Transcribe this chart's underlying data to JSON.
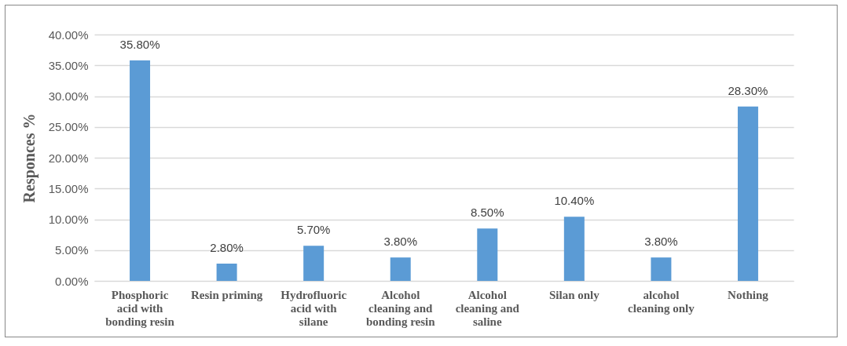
{
  "chart_data": {
    "type": "bar",
    "ylabel": "Responces %",
    "categories": [
      "Phosphoric acid with bonding resin",
      "Resin priming",
      "Hydrofluoric acid with silane",
      "Alcohol cleaning and bonding resin",
      "Alcohol cleaning and saline",
      "Silan only",
      "alcohol cleaning only",
      "Nothing"
    ],
    "values": [
      35.8,
      2.8,
      5.7,
      3.8,
      8.5,
      10.4,
      3.8,
      28.3
    ],
    "value_labels": [
      "35.80%",
      "2.80%",
      "5.70%",
      "3.80%",
      "8.50%",
      "10.40%",
      "3.80%",
      "28.30%"
    ],
    "color": "#5b9bd5",
    "ylim": [
      0,
      40
    ],
    "yticks": [
      {
        "value": 0,
        "label": "0.00%"
      },
      {
        "value": 5,
        "label": "5.00%"
      },
      {
        "value": 10,
        "label": "10.00%"
      },
      {
        "value": 15,
        "label": "15.00%"
      },
      {
        "value": 20,
        "label": "20.00%"
      },
      {
        "value": 25,
        "label": "25.00%"
      },
      {
        "value": 30,
        "label": "30.00%"
      },
      {
        "value": 35,
        "label": "35.00%"
      },
      {
        "value": 40,
        "label": "40.00%"
      }
    ],
    "grid": true
  }
}
